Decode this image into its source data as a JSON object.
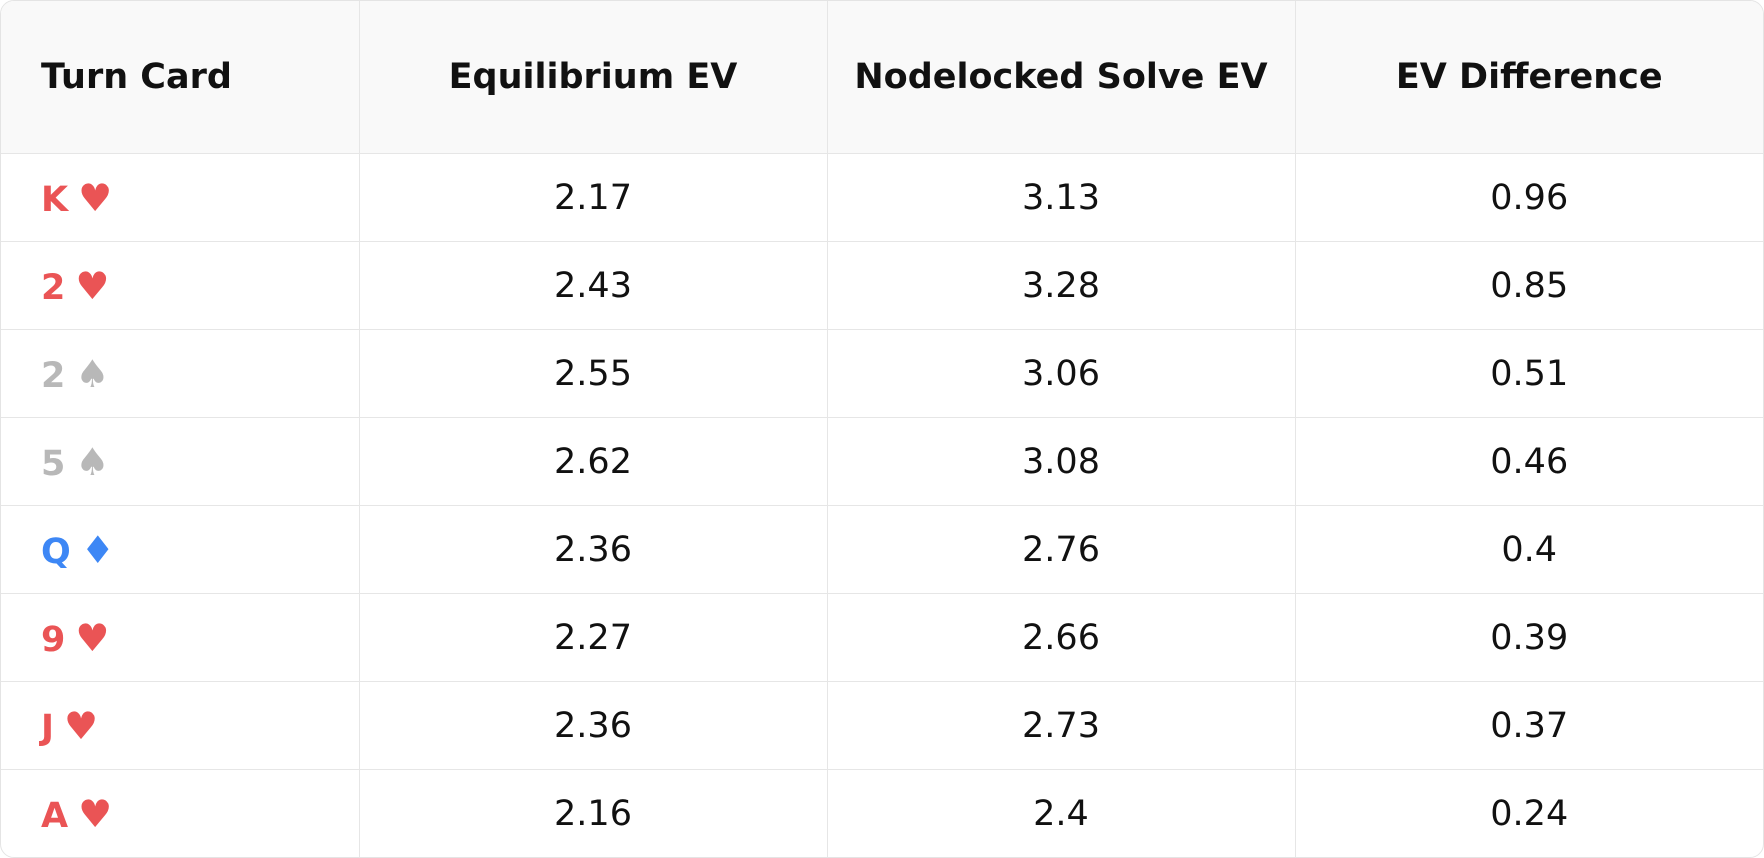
{
  "table": {
    "header": [
      "Turn Card",
      "Equilibrium EV",
      "Nodelocked Solve EV",
      "EV Difference"
    ],
    "rows": [
      [
        {
          "rank": "K",
          "suit": "♥",
          "color": "#ea5455"
        },
        "2.17",
        "3.13",
        "0.96"
      ],
      [
        {
          "rank": "2",
          "suit": "♥",
          "color": "#ea5455"
        },
        "2.43",
        "3.28",
        "0.85"
      ],
      [
        {
          "rank": "2",
          "suit": "♠",
          "color": "#b8b8b8"
        },
        "2.55",
        "3.06",
        "0.51"
      ],
      [
        {
          "rank": "5",
          "suit": "♠",
          "color": "#b8b8b8"
        },
        "2.62",
        "3.08",
        "0.46"
      ],
      [
        {
          "rank": "Q",
          "suit": "♦",
          "color": "#3d87f5"
        },
        "2.36",
        "2.76",
        "0.4"
      ],
      [
        {
          "rank": "9",
          "suit": "♥",
          "color": "#ea5455"
        },
        "2.27",
        "2.66",
        "0.39"
      ],
      [
        {
          "rank": "J",
          "suit": "♥",
          "color": "#ea5455"
        },
        "2.36",
        "2.73",
        "0.37"
      ],
      [
        {
          "rank": "A",
          "suit": "♥",
          "color": "#ea5455"
        },
        "2.16",
        "2.4",
        "0.24"
      ]
    ]
  }
}
